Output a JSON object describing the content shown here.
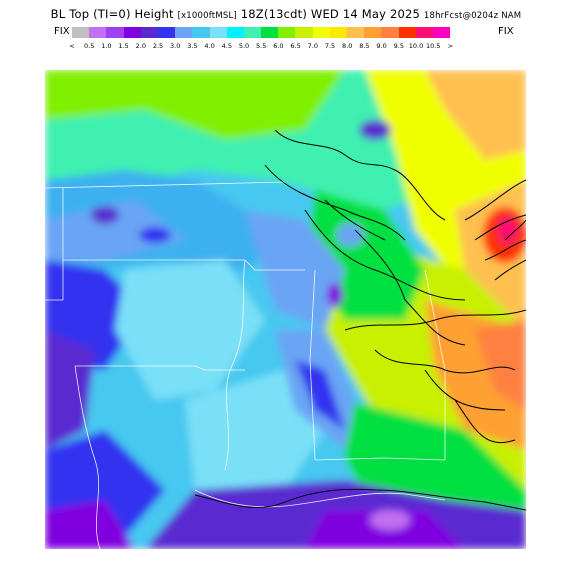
{
  "header": {
    "title_main": "BL Top (TI=0) Height",
    "title_units": "[x1000ftMSL]",
    "title_time": "18Z(13cdt) WED 14 May 2025",
    "title_fcst": "18hrFcst@0204z NAM"
  },
  "legend": {
    "fix_left": "FIX",
    "fix_right": "FIX",
    "lt_symbol": "<",
    "gt_symbol": ">",
    "labels": [
      "0.5",
      "1.0",
      "1.5",
      "2.0",
      "2.5",
      "3.0",
      "3.5",
      "4.0",
      "4.5",
      "5.0",
      "5.5",
      "6.0",
      "6.5",
      "7.0",
      "7.5",
      "8.0",
      "8.5",
      "9.0",
      "9.5",
      "10.0",
      "10.5"
    ],
    "colors": [
      "#c0c0c0",
      "#c070f0",
      "#a040f0",
      "#8000e0",
      "#5a2ad0",
      "#3232f0",
      "#6aa4f4",
      "#46c8f0",
      "#7ae0f8",
      "#00f0ff",
      "#40f0b0",
      "#00e040",
      "#80f000",
      "#c8f000",
      "#f0ff00",
      "#ffe800",
      "#ffc050",
      "#ffa030",
      "#ff8040",
      "#ff3000",
      "#ff1070",
      "#ff00c0"
    ]
  }
}
